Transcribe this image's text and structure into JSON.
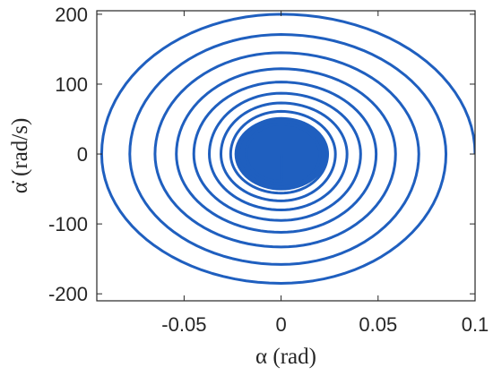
{
  "chart_data": {
    "type": "line",
    "title": "",
    "xlabel": "α (rad)",
    "ylabel": "α̇ (rad/s)",
    "xlim": [
      -0.095,
      0.1
    ],
    "ylim": [
      -210,
      205
    ],
    "xticks": [
      -0.05,
      0,
      0.05,
      0.1
    ],
    "xtick_labels": [
      "-0.05",
      "0",
      "0.05",
      "0.1"
    ],
    "yticks": [
      -200,
      -100,
      0,
      100,
      200
    ],
    "ytick_labels": [
      "-200",
      "-100",
      "0",
      "100",
      "200"
    ],
    "grid": false,
    "box": true,
    "series": [
      {
        "description": "decaying oscillation spiral in phase plane",
        "color": "#1f5fbf",
        "amplitude_alpha": [
          0.1,
          0.0925,
          0.085,
          0.078,
          0.071,
          0.065,
          0.059,
          0.054,
          0.049,
          0.045,
          0.041,
          0.037,
          0.034,
          0.031,
          0.028,
          0.026,
          0.024,
          0.022,
          0.02,
          0.018
        ],
        "amplitude_alpha_dot": [
          200,
          185,
          171,
          158,
          145,
          133,
          122,
          112,
          103,
          95,
          87,
          80,
          73,
          67,
          61,
          56,
          51,
          47,
          43,
          39
        ],
        "points": [
          [
            0.1,
            0
          ],
          [
            0.0,
            200
          ],
          [
            -0.0925,
            0
          ],
          [
            0.0,
            -185
          ],
          [
            0.085,
            0
          ],
          [
            0.0,
            171
          ],
          [
            -0.078,
            0
          ],
          [
            0.0,
            -158
          ],
          [
            0.071,
            0
          ],
          [
            0.0,
            145
          ],
          [
            -0.065,
            0
          ],
          [
            0.0,
            -133
          ],
          [
            0.059,
            0
          ],
          [
            0.0,
            122
          ],
          [
            -0.054,
            0
          ],
          [
            0.0,
            -112
          ],
          [
            0.049,
            0
          ],
          [
            0.0,
            103
          ],
          [
            -0.045,
            0
          ],
          [
            0.0,
            -95
          ],
          [
            0.041,
            0
          ],
          [
            0.0,
            87
          ],
          [
            -0.037,
            0
          ],
          [
            0.0,
            -80
          ],
          [
            0.034,
            0
          ],
          [
            0.0,
            73
          ],
          [
            -0.031,
            0
          ],
          [
            0.0,
            -67
          ],
          [
            0.028,
            0
          ],
          [
            0.0,
            61
          ],
          [
            -0.026,
            0
          ],
          [
            0.0,
            -56
          ],
          [
            0.024,
            0
          ],
          [
            0.0,
            51
          ],
          [
            -0.022,
            0
          ],
          [
            0.0,
            -47
          ],
          [
            0.02,
            0
          ],
          [
            0.0,
            43
          ],
          [
            -0.018,
            0
          ],
          [
            0.0,
            -39
          ],
          [
            0.0,
            0
          ]
        ],
        "filled_core": {
          "alpha_radius": 0.024,
          "alpha_dot_radius": 52
        }
      }
    ]
  }
}
